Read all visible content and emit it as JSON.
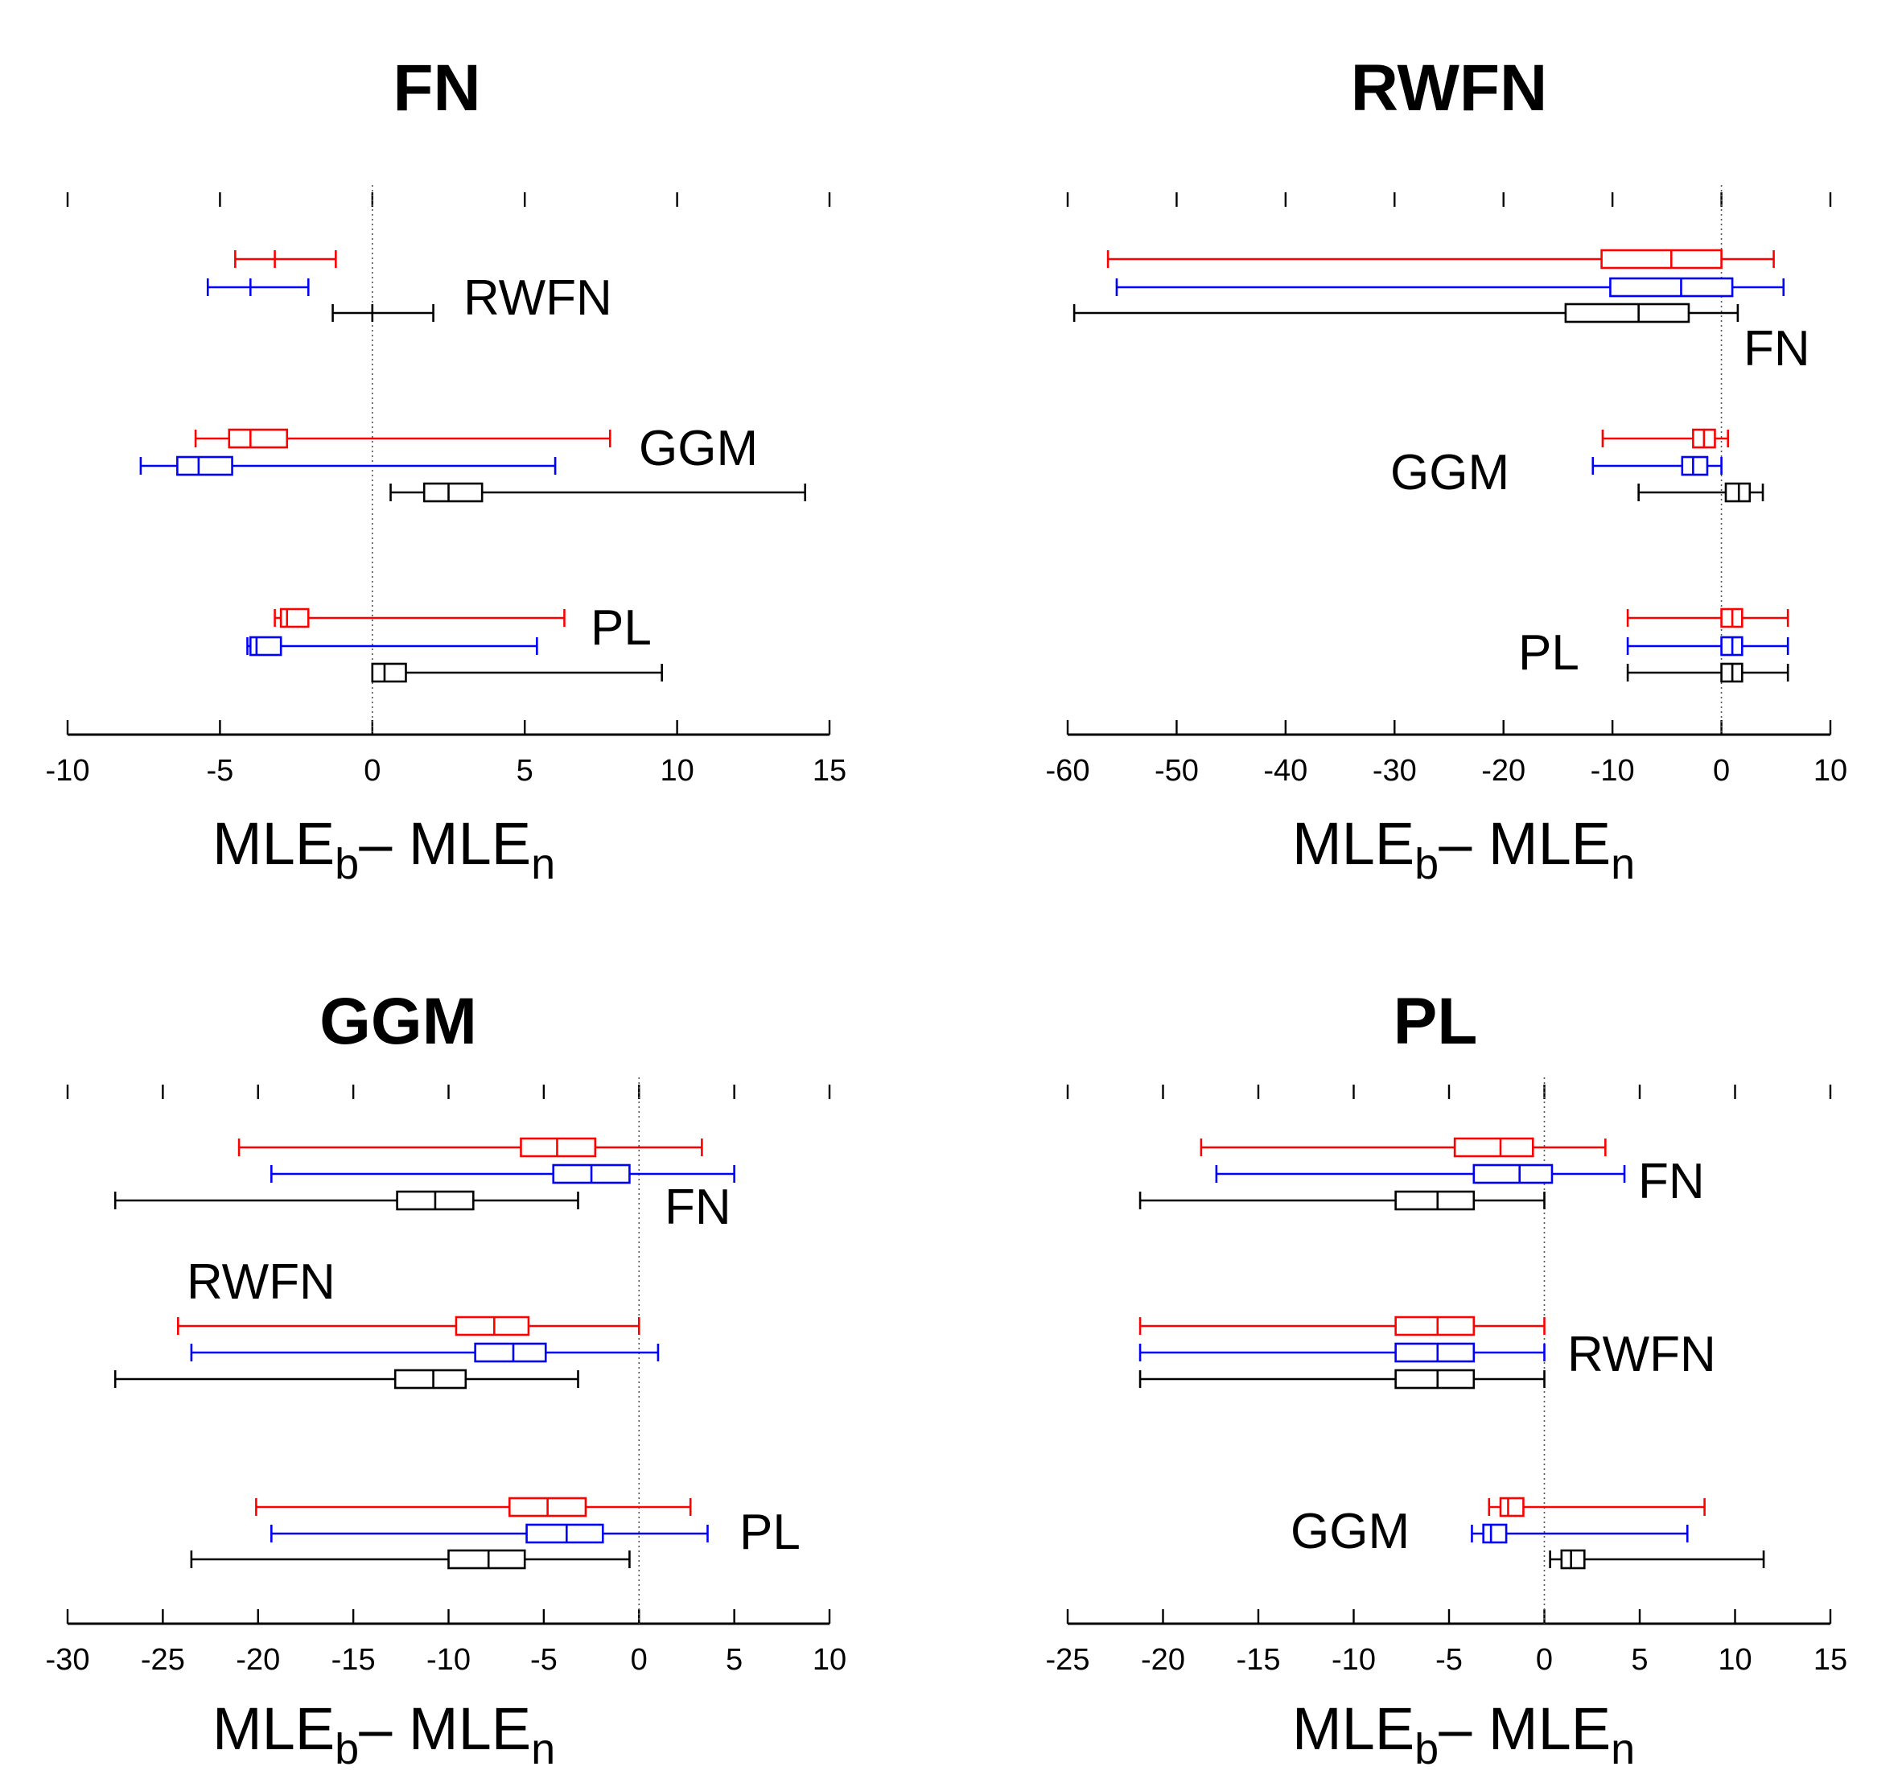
{
  "series_colors": {
    "red": "#ff0000",
    "blue": "#0000ff",
    "black": "#000000"
  },
  "chart_data": [
    {
      "type": "boxplot",
      "orientation": "horizontal",
      "title": "FN",
      "xlabel": {
        "main": "MLE",
        "sub1": "b",
        "sep": "– ",
        "main2": "MLE",
        "sub2": "n"
      },
      "xlim": [
        -10,
        15
      ],
      "xticks": [
        -10,
        -5,
        0,
        5,
        10,
        15
      ],
      "tick_labels": [
        "-10",
        "-5",
        "0",
        "5",
        "10",
        "15"
      ],
      "groups": [
        {
          "label": "RWFN",
          "boxes": [
            {
              "color": "red",
              "whisker_low": -4.5,
              "q1": -3.2,
              "median": -3.2,
              "q3": -3.2,
              "whisker_high": -1.2
            },
            {
              "color": "blue",
              "whisker_low": -5.4,
              "q1": -4.0,
              "median": -4.0,
              "q3": -4.0,
              "whisker_high": -2.1
            },
            {
              "color": "black",
              "whisker_low": -1.3,
              "q1": 0.0,
              "median": 0.0,
              "q3": 0.0,
              "whisker_high": 2.0
            }
          ]
        },
        {
          "label": "GGM",
          "boxes": [
            {
              "color": "red",
              "whisker_low": -5.8,
              "q1": -4.7,
              "median": -4.0,
              "q3": -2.8,
              "whisker_high": 7.8
            },
            {
              "color": "blue",
              "whisker_low": -7.6,
              "q1": -6.4,
              "median": -5.7,
              "q3": -4.6,
              "whisker_high": 6.0
            },
            {
              "color": "black",
              "whisker_low": 0.6,
              "q1": 1.7,
              "median": 2.5,
              "q3": 3.6,
              "whisker_high": 14.2
            }
          ]
        },
        {
          "label": "PL",
          "boxes": [
            {
              "color": "red",
              "whisker_low": -3.2,
              "q1": -3.0,
              "median": -2.8,
              "q3": -2.1,
              "whisker_high": 6.3
            },
            {
              "color": "blue",
              "whisker_low": -4.1,
              "q1": -4.0,
              "median": -3.8,
              "q3": -3.0,
              "whisker_high": 5.4
            },
            {
              "color": "black",
              "whisker_low": 0.0,
              "q1": 0.0,
              "median": 0.4,
              "q3": 1.1,
              "whisker_high": 9.5
            }
          ]
        }
      ]
    },
    {
      "type": "boxplot",
      "orientation": "horizontal",
      "title": "RWFN",
      "xlabel": {
        "main": "MLE",
        "sub1": "b",
        "sep": "– ",
        "main2": "MLE",
        "sub2": "n"
      },
      "xlim": [
        -60,
        10
      ],
      "xticks": [
        -60,
        -50,
        -40,
        -30,
        -20,
        -10,
        0,
        10
      ],
      "tick_labels": [
        "-60",
        "-50",
        "-40",
        "-30",
        "-20",
        "-10",
        "0",
        "10"
      ],
      "groups": [
        {
          "label": "FN",
          "boxes": [
            {
              "color": "red",
              "whisker_low": -56.3,
              "q1": -11.0,
              "median": -4.6,
              "q3": 0.0,
              "whisker_high": 4.8
            },
            {
              "color": "blue",
              "whisker_low": -55.5,
              "q1": -10.2,
              "median": -3.7,
              "q3": 1.0,
              "whisker_high": 5.7
            },
            {
              "color": "black",
              "whisker_low": -59.4,
              "q1": -14.3,
              "median": -7.6,
              "q3": -3.0,
              "whisker_high": 1.5
            }
          ]
        },
        {
          "label": "GGM",
          "boxes": [
            {
              "color": "red",
              "whisker_low": -10.9,
              "q1": -2.6,
              "median": -1.6,
              "q3": -0.6,
              "whisker_high": 0.6
            },
            {
              "color": "blue",
              "whisker_low": -11.8,
              "q1": -3.6,
              "median": -2.6,
              "q3": -1.3,
              "whisker_high": 0.0
            },
            {
              "color": "black",
              "whisker_low": -7.6,
              "q1": 0.4,
              "median": 1.6,
              "q3": 2.6,
              "whisker_high": 3.8
            }
          ]
        },
        {
          "label": "PL",
          "boxes": [
            {
              "color": "red",
              "whisker_low": -8.6,
              "q1": 0.0,
              "median": 1.0,
              "q3": 1.9,
              "whisker_high": 6.1
            },
            {
              "color": "blue",
              "whisker_low": -8.6,
              "q1": 0.0,
              "median": 1.0,
              "q3": 1.9,
              "whisker_high": 6.1
            },
            {
              "color": "black",
              "whisker_low": -8.6,
              "q1": 0.0,
              "median": 1.0,
              "q3": 1.9,
              "whisker_high": 6.1
            }
          ]
        }
      ]
    },
    {
      "type": "boxplot",
      "orientation": "horizontal",
      "title": "GGM",
      "xlabel": {
        "main": "MLE",
        "sub1": "b",
        "sep": "– ",
        "main2": "MLE",
        "sub2": "n"
      },
      "xlim": [
        -30,
        10
      ],
      "xticks": [
        -30,
        -25,
        -20,
        -15,
        -10,
        -5,
        0,
        5,
        10
      ],
      "tick_labels": [
        "-30",
        "-25",
        "-20",
        "-15",
        "-10",
        "-5",
        "0",
        "5",
        "10"
      ],
      "groups": [
        {
          "label": "FN",
          "boxes": [
            {
              "color": "red",
              "whisker_low": -21.0,
              "q1": -6.2,
              "median": -4.3,
              "q3": -2.3,
              "whisker_high": 3.3
            },
            {
              "color": "blue",
              "whisker_low": -19.3,
              "q1": -4.5,
              "median": -2.5,
              "q3": -0.5,
              "whisker_high": 5.0
            },
            {
              "color": "black",
              "whisker_low": -27.5,
              "q1": -12.7,
              "median": -10.7,
              "q3": -8.7,
              "whisker_high": -3.2
            }
          ]
        },
        {
          "label": "RWFN",
          "boxes": [
            {
              "color": "red",
              "whisker_low": -24.2,
              "q1": -9.6,
              "median": -7.6,
              "q3": -5.8,
              "whisker_high": 0.0
            },
            {
              "color": "blue",
              "whisker_low": -23.5,
              "q1": -8.6,
              "median": -6.6,
              "q3": -4.9,
              "whisker_high": 1.0
            },
            {
              "color": "black",
              "whisker_low": -27.5,
              "q1": -12.8,
              "median": -10.8,
              "q3": -9.1,
              "whisker_high": -3.2
            }
          ]
        },
        {
          "label": "PL",
          "boxes": [
            {
              "color": "red",
              "whisker_low": -20.1,
              "q1": -6.8,
              "median": -4.8,
              "q3": -2.8,
              "whisker_high": 2.7
            },
            {
              "color": "blue",
              "whisker_low": -19.3,
              "q1": -5.9,
              "median": -3.8,
              "q3": -1.9,
              "whisker_high": 3.6
            },
            {
              "color": "black",
              "whisker_low": -23.5,
              "q1": -10.0,
              "median": -7.9,
              "q3": -6.0,
              "whisker_high": -0.5
            }
          ]
        }
      ]
    },
    {
      "type": "boxplot",
      "orientation": "horizontal",
      "title": "PL",
      "xlabel": {
        "main": "MLE",
        "sub1": "b",
        "sep": "– ",
        "main2": "MLE",
        "sub2": "n"
      },
      "xlim": [
        -25,
        15
      ],
      "xticks": [
        -25,
        -20,
        -15,
        -10,
        -5,
        0,
        5,
        10,
        15
      ],
      "tick_labels": [
        "-25",
        "-20",
        "-15",
        "-10",
        "-5",
        "0",
        "5",
        "10",
        "15"
      ],
      "groups": [
        {
          "label": "FN",
          "boxes": [
            {
              "color": "red",
              "whisker_low": -18.0,
              "q1": -4.7,
              "median": -2.3,
              "q3": -0.6,
              "whisker_high": 3.2
            },
            {
              "color": "blue",
              "whisker_low": -17.2,
              "q1": -3.7,
              "median": -1.3,
              "q3": 0.4,
              "whisker_high": 4.2
            },
            {
              "color": "black",
              "whisker_low": -21.2,
              "q1": -7.8,
              "median": -5.6,
              "q3": -3.7,
              "whisker_high": 0.0
            }
          ]
        },
        {
          "label": "RWFN",
          "boxes": [
            {
              "color": "red",
              "whisker_low": -21.2,
              "q1": -7.8,
              "median": -5.6,
              "q3": -3.7,
              "whisker_high": 0.0
            },
            {
              "color": "blue",
              "whisker_low": -21.2,
              "q1": -7.8,
              "median": -5.6,
              "q3": -3.7,
              "whisker_high": 0.0
            },
            {
              "color": "black",
              "whisker_low": -21.2,
              "q1": -7.8,
              "median": -5.6,
              "q3": -3.7,
              "whisker_high": 0.0
            }
          ]
        },
        {
          "label": "GGM",
          "boxes": [
            {
              "color": "red",
              "whisker_low": -2.9,
              "q1": -2.3,
              "median": -1.9,
              "q3": -1.1,
              "whisker_high": 8.4
            },
            {
              "color": "blue",
              "whisker_low": -3.8,
              "q1": -3.2,
              "median": -2.8,
              "q3": -2.0,
              "whisker_high": 7.5
            },
            {
              "color": "black",
              "whisker_low": 0.3,
              "q1": 0.9,
              "median": 1.4,
              "q3": 2.1,
              "whisker_high": 11.5
            }
          ]
        }
      ]
    }
  ]
}
